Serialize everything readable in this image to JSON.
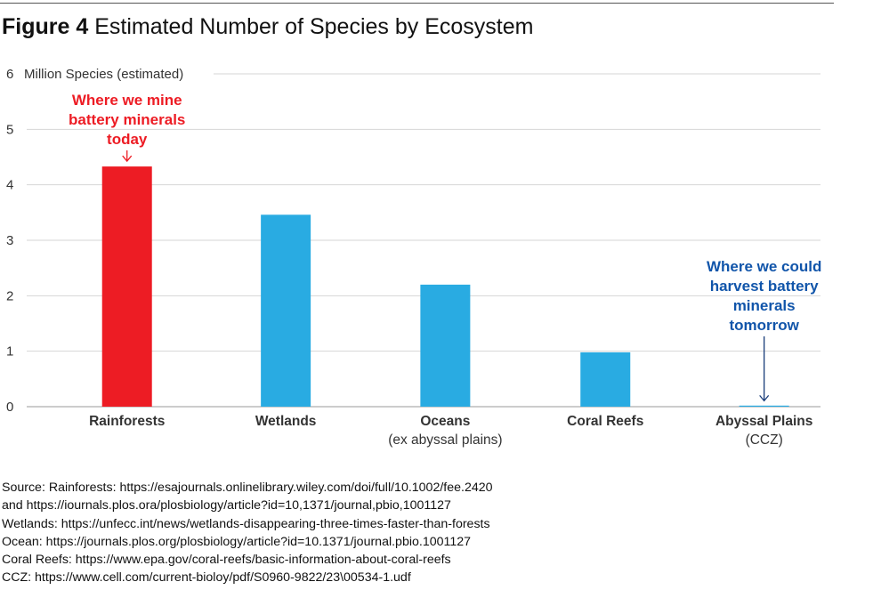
{
  "figure": {
    "label": "Figure 4",
    "title": "Estimated Number of Species by Ecosystem"
  },
  "chart_data": {
    "type": "bar",
    "ylabel": "Million Species (estimated)",
    "ylim": [
      0,
      6
    ],
    "yticks": [
      0,
      1,
      2,
      3,
      4,
      5,
      6
    ],
    "grid": "horizontal",
    "categories": [
      [
        "Rainforests"
      ],
      [
        "Wetlands"
      ],
      [
        "Oceans",
        "(ex abyssal plains)"
      ],
      [
        "Coral Reefs"
      ],
      [
        "Abyssal Plains",
        "(CCZ)"
      ]
    ],
    "values": [
      4.33,
      3.46,
      2.2,
      0.98,
      0.01
    ],
    "colors": [
      "#ed1c24",
      "#29abe2",
      "#29abe2",
      "#29abe2",
      "#29abe2"
    ],
    "annotations": [
      {
        "category_index": 0,
        "lines": [
          "Where we mine",
          "battery minerals",
          "today"
        ],
        "color": "#ed1c24"
      },
      {
        "category_index": 4,
        "lines": [
          "Where we could",
          "harvest battery",
          "minerals",
          "tomorrow"
        ],
        "color": "#1155aa"
      }
    ]
  },
  "source": {
    "lines": [
      "Source: Rainforests: https://esajournals.onlinelibrary.wiley.com/doi/full/10.1002/fee.2420",
      "and https://iournals.plos.ora/plosbiology/article?id=10,1371/journal,pbio,1001127",
      "Wetlands: https://unfecc.int/news/wetlands-disappearing-three-times-faster-than-forests",
      "Ocean: https://journals.plos.org/plosbiology/article?id=10.1371/journal.pbio.1001127",
      "Coral Reefs: https://www.epa.gov/coral-reefs/basic-information-about-coral-reefs",
      "CCZ: https://www.cell.com/current-bioloy/pdf/S0960-9822/23\\00534-1.udf"
    ]
  }
}
